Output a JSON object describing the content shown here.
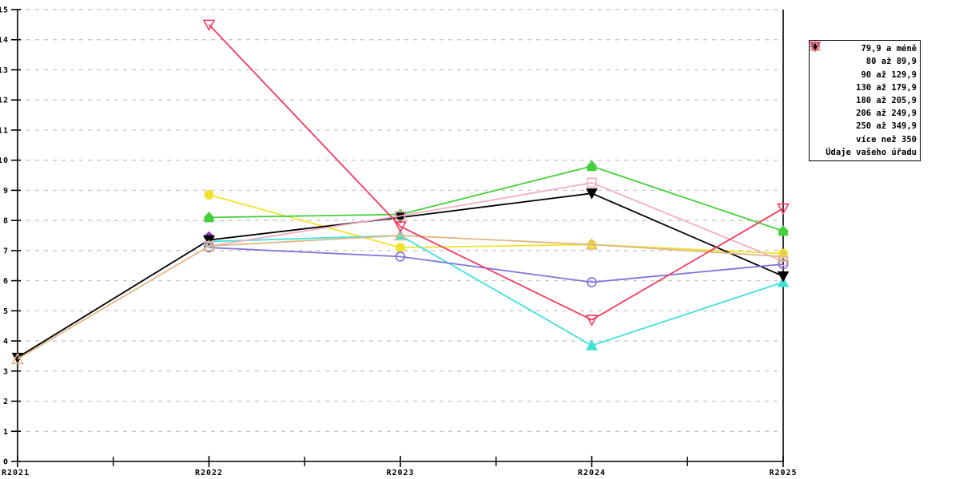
{
  "chart_data": {
    "type": "line",
    "title": "",
    "xlabel": "",
    "ylabel": "",
    "categories": [
      "R2021",
      "R2022",
      "R2023",
      "R2024",
      "R2025"
    ],
    "ylim": [
      0,
      15
    ],
    "yticks": [
      "0",
      "1",
      "2",
      "3",
      "4",
      "5",
      "6",
      "7",
      "8",
      "9",
      "10",
      "11",
      "12",
      "13",
      "14",
      "15"
    ],
    "grid": "horizontal-dashed",
    "grid_color": "#c9c9c9",
    "axis_color": "#000000",
    "legend_position": "top-right",
    "series": [
      {
        "name": "79,9 a méně",
        "color": "#9932CC",
        "marker": "diamond",
        "fill": "filled",
        "values": [
          null,
          7.45,
          null,
          null,
          null
        ]
      },
      {
        "name": "80 až 89,9",
        "color": "#F2E22E",
        "marker": "circle",
        "fill": "filled",
        "values": [
          null,
          8.85,
          7.1,
          7.2,
          6.9
        ]
      },
      {
        "name": "90 až 129,9",
        "color": "#3FE2D8",
        "marker": "triangle-up",
        "fill": "filled",
        "values": [
          null,
          7.3,
          7.5,
          3.85,
          5.95
        ]
      },
      {
        "name": "130 až 179,9",
        "color": "#46CF3C",
        "marker": "pentagon",
        "fill": "filled",
        "values": [
          null,
          8.1,
          8.2,
          9.8,
          7.65
        ]
      },
      {
        "name": "180 až 205,9",
        "color": "#000000",
        "marker": "triangle-down",
        "fill": "filled",
        "values": [
          3.45,
          7.35,
          8.1,
          8.9,
          6.15
        ]
      },
      {
        "name": "206 až 249,9",
        "color": "#F2AEC0",
        "marker": "square",
        "fill": "open",
        "values": [
          null,
          7.15,
          8.15,
          9.25,
          6.65
        ]
      },
      {
        "name": "250 až 349,9",
        "color": "#7C74DC",
        "marker": "circle",
        "fill": "open",
        "values": [
          null,
          7.1,
          6.8,
          5.95,
          6.55
        ]
      },
      {
        "name": "více než 350",
        "color": "#DEB887",
        "marker": "triangle-up",
        "fill": "open",
        "values": [
          3.4,
          7.15,
          7.5,
          7.2,
          6.8
        ]
      },
      {
        "name": "Údaje vašeho úřadu",
        "color": "#F23B5E",
        "marker": "triangle-down",
        "fill": "open",
        "values": [
          null,
          14.5,
          7.8,
          4.7,
          8.4
        ]
      }
    ]
  }
}
